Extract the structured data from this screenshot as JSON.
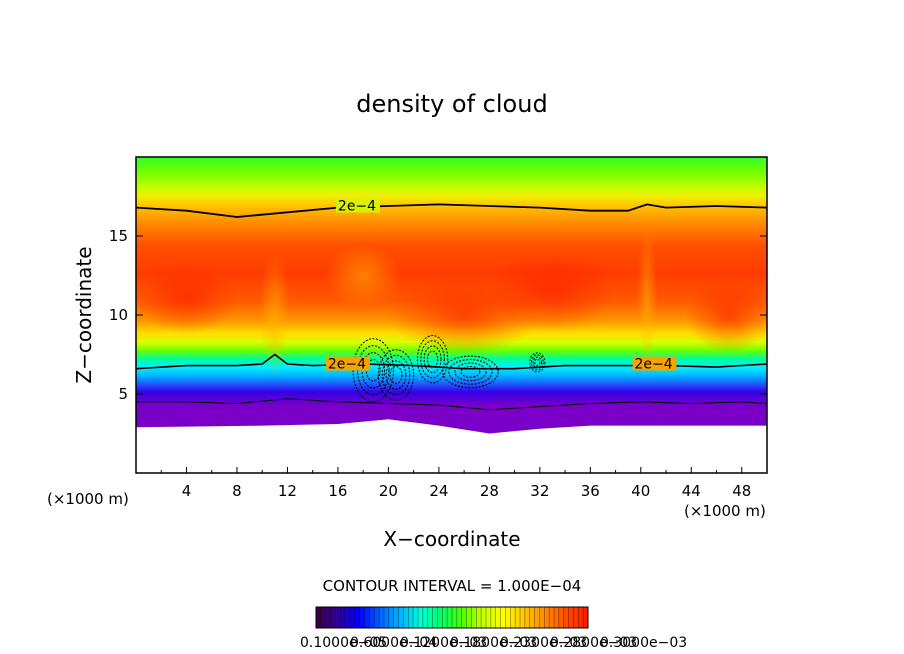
{
  "chart_data": {
    "type": "heatmap",
    "title": "density of cloud",
    "xlabel": "X−coordinate",
    "ylabel": "Z−coordinate",
    "x_unit_label": "(×1000 m)",
    "z_unit_label": "(×1000 m)",
    "xlim": [
      0,
      50
    ],
    "ylim": [
      0,
      20
    ],
    "x_ticks": [
      "4",
      "8",
      "12",
      "16",
      "20",
      "24",
      "28",
      "32",
      "36",
      "40",
      "44",
      "48"
    ],
    "y_ticks": [
      "5",
      "10",
      "15"
    ],
    "contour_interval_text": "CONTOUR INTERVAL = 1.000E−04",
    "contour_labels": [
      {
        "text": "2e−4",
        "x": 16.0,
        "z": 16.8
      },
      {
        "text": "2e−4",
        "x": 15.2,
        "z": 6.8
      },
      {
        "text": "2e−4",
        "x": 39.5,
        "z": 6.8
      }
    ],
    "contours": {
      "upper_2e-4": [
        [
          0,
          16.8
        ],
        [
          4,
          16.6
        ],
        [
          8,
          16.2
        ],
        [
          12,
          16.5
        ],
        [
          16,
          16.8
        ],
        [
          20,
          16.9
        ],
        [
          24,
          17.0
        ],
        [
          28,
          16.9
        ],
        [
          32,
          16.8
        ],
        [
          36,
          16.6
        ],
        [
          39,
          16.6
        ],
        [
          40.5,
          17.0
        ],
        [
          42,
          16.8
        ],
        [
          46,
          16.9
        ],
        [
          50,
          16.8
        ]
      ],
      "lower_2e-4": [
        [
          0,
          6.6
        ],
        [
          4,
          6.8
        ],
        [
          8,
          6.8
        ],
        [
          10,
          6.9
        ],
        [
          11,
          7.5
        ],
        [
          12,
          6.9
        ],
        [
          14,
          6.8
        ],
        [
          18,
          6.9
        ],
        [
          22,
          6.8
        ],
        [
          26,
          6.6
        ],
        [
          30,
          6.6
        ],
        [
          34,
          6.8
        ],
        [
          38,
          6.8
        ],
        [
          42,
          6.8
        ],
        [
          46,
          6.7
        ],
        [
          50,
          6.9
        ]
      ],
      "low_1e-4": [
        [
          0,
          4.5
        ],
        [
          4,
          4.5
        ],
        [
          8,
          4.4
        ],
        [
          12,
          4.7
        ],
        [
          16,
          4.5
        ],
        [
          20,
          4.4
        ],
        [
          24,
          4.3
        ],
        [
          28,
          4.0
        ],
        [
          32,
          4.2
        ],
        [
          36,
          4.4
        ],
        [
          40,
          4.5
        ],
        [
          44,
          4.4
        ],
        [
          48,
          4.5
        ],
        [
          50,
          4.4
        ]
      ]
    },
    "field_bottom": [
      [
        0,
        2.9
      ],
      [
        10,
        3.0
      ],
      [
        16,
        3.1
      ],
      [
        20,
        3.4
      ],
      [
        24,
        3.0
      ],
      [
        28,
        2.5
      ],
      [
        32,
        2.8
      ],
      [
        36,
        3.0
      ],
      [
        44,
        3.0
      ],
      [
        50,
        3.0
      ]
    ],
    "colorbar": {
      "tick_labels": [
        "0.1000e−05",
        "0.6000e−04",
        "0.1200e−03",
        "0.1800e−03",
        "0.2300e−03",
        "0.2800e−03",
        "0.3000e−03"
      ],
      "colors": [
        "#3a0046",
        "#2e00a0",
        "#0000ff",
        "#0064ff",
        "#00b4ff",
        "#00ffd2",
        "#00ff64",
        "#50ff00",
        "#c8ff00",
        "#ffff00",
        "#ffc800",
        "#ff8c00",
        "#ff5000",
        "#ff1e00"
      ]
    }
  }
}
